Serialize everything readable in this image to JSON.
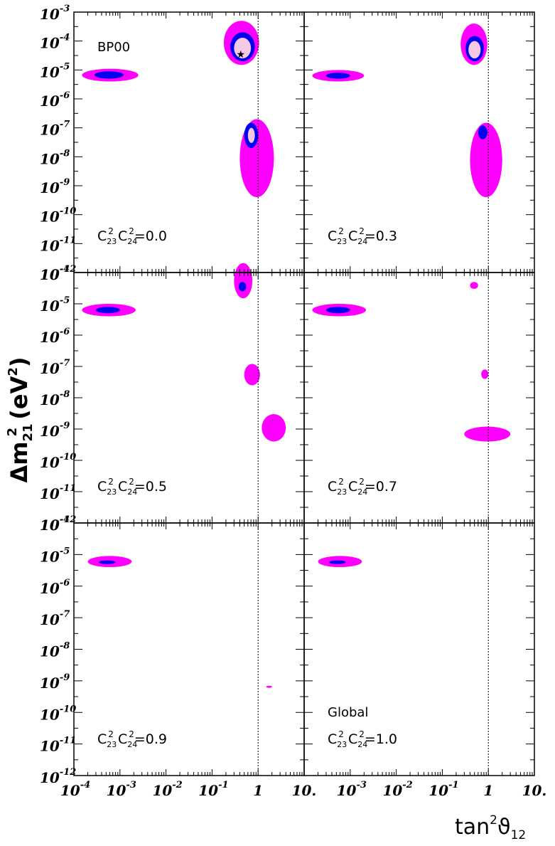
{
  "chart_data": {
    "type": "contour",
    "x_axis": {
      "label_main": "tan",
      "label_sup": "2",
      "label_sym": "ϑ",
      "label_sub": "12",
      "scale": "log",
      "range": [
        0.0001,
        10
      ],
      "ticks": [
        {
          "v": 0.0001,
          "base": "10",
          "exp": "-4"
        },
        {
          "v": 0.001,
          "base": "10",
          "exp": "-3"
        },
        {
          "v": 0.01,
          "base": "10",
          "exp": "-2"
        },
        {
          "v": 0.1,
          "base": "10",
          "exp": "-1"
        },
        {
          "v": 1,
          "base": "1",
          "exp": ""
        },
        {
          "v": 10,
          "base": "10.",
          "exp": ""
        }
      ],
      "reference_line": 1
    },
    "y_axis": {
      "label_main": "Δm",
      "label_sub": "21",
      "label_sup": "2",
      "label_unit": "(eV",
      "label_unit_sup": "2",
      "label_unit_close": ")",
      "scale": "log",
      "range": [
        1e-12,
        0.001
      ],
      "top_panel_ticks": [
        "-3",
        "-4",
        "-5",
        "-6",
        "-7",
        "-8",
        "-9",
        "-10",
        "-11",
        "-12"
      ],
      "other_panel_ticks": [
        "-4",
        "-5",
        "-6",
        "-7",
        "-8",
        "-9",
        "-10",
        "-11",
        "-12"
      ]
    },
    "colors": {
      "outer": "#ff00ff",
      "middle": "#0000ee",
      "inner": "#f5c8e6",
      "frame": "#000000",
      "ref_line": "#000000"
    },
    "panels": [
      {
        "row": 0,
        "col": 0,
        "label_line1": "BP00",
        "label_base": "C",
        "sub1": "23",
        "sub2": "24",
        "value": "=0.0",
        "best_fit_marker": {
          "tan2theta": 0.42,
          "dm2": 3.5e-05
        },
        "regions": [
          {
            "kind": "outer",
            "tan2theta": [
              0.18,
              1.05
            ],
            "dm2": [
              1.5e-05,
              0.0005
            ]
          },
          {
            "kind": "middle",
            "tan2theta": [
              0.25,
              0.85
            ],
            "dm2": [
              2e-05,
              0.0002
            ]
          },
          {
            "kind": "inner",
            "tan2theta": [
              0.3,
              0.7
            ],
            "dm2": [
              2.5e-05,
              0.00013
            ]
          },
          {
            "kind": "outer",
            "tan2theta": [
              0.00015,
              0.0025
            ],
            "dm2": [
              4e-06,
              1.1e-05
            ]
          },
          {
            "kind": "middle",
            "tan2theta": [
              0.00028,
              0.0012
            ],
            "dm2": [
              5e-06,
              9e-06
            ]
          },
          {
            "kind": "outer",
            "tan2theta": [
              0.4,
              2.2
            ],
            "dm2": [
              4e-10,
              2e-07
            ]
          },
          {
            "kind": "middle",
            "tan2theta": [
              0.5,
              1.0
            ],
            "dm2": [
              2e-08,
              1.5e-07
            ]
          },
          {
            "kind": "inner",
            "tan2theta": [
              0.6,
              0.85
            ],
            "dm2": [
              3e-08,
              1e-07
            ]
          }
        ]
      },
      {
        "row": 0,
        "col": 1,
        "label_line1": "",
        "label_base": "C",
        "sub1": "23",
        "sub2": "24",
        "value": "=0.3",
        "regions": [
          {
            "kind": "outer",
            "tan2theta": [
              0.25,
              0.95
            ],
            "dm2": [
              1.5e-05,
              0.0004
            ]
          },
          {
            "kind": "middle",
            "tan2theta": [
              0.32,
              0.8
            ],
            "dm2": [
              2e-05,
              0.00015
            ]
          },
          {
            "kind": "inner",
            "tan2theta": [
              0.37,
              0.68
            ],
            "dm2": [
              2.5e-05,
              0.0001
            ]
          },
          {
            "kind": "outer",
            "tan2theta": [
              0.00015,
              0.002
            ],
            "dm2": [
              4e-06,
              1e-05
            ]
          },
          {
            "kind": "middle",
            "tan2theta": [
              0.0003,
              0.001
            ],
            "dm2": [
              5e-06,
              8e-06
            ]
          },
          {
            "kind": "outer",
            "tan2theta": [
              0.4,
              2.0
            ],
            "dm2": [
              4e-10,
              1.5e-07
            ]
          },
          {
            "kind": "middle",
            "tan2theta": [
              0.6,
              0.95
            ],
            "dm2": [
              4e-08,
              1.2e-07
            ]
          }
        ]
      },
      {
        "row": 1,
        "col": 0,
        "label_line1": "",
        "label_base": "C",
        "sub1": "23",
        "sub2": "24",
        "value": "=0.5",
        "regions": [
          {
            "kind": "outer",
            "tan2theta": [
              0.3,
              0.75
            ],
            "dm2": [
              1.5e-05,
              0.0002
            ]
          },
          {
            "kind": "middle",
            "tan2theta": [
              0.38,
              0.55
            ],
            "dm2": [
              2.5e-05,
              5e-05
            ]
          },
          {
            "kind": "outer",
            "tan2theta": [
              0.00015,
              0.0022
            ],
            "dm2": [
              4e-06,
              1e-05
            ]
          },
          {
            "kind": "middle",
            "tan2theta": [
              0.0003,
              0.001
            ],
            "dm2": [
              5e-06,
              8e-06
            ]
          },
          {
            "kind": "outer",
            "tan2theta": [
              0.5,
              1.1
            ],
            "dm2": [
              2.5e-08,
              1.2e-07
            ]
          },
          {
            "kind": "outer",
            "tan2theta": [
              1.2,
              4.0
            ],
            "dm2": [
              4e-10,
              3e-09
            ]
          }
        ]
      },
      {
        "row": 1,
        "col": 1,
        "label_line1": "",
        "label_base": "C",
        "sub1": "23",
        "sub2": "24",
        "value": "=0.7",
        "regions": [
          {
            "kind": "outer",
            "tan2theta": [
              0.4,
              0.6
            ],
            "dm2": [
              3e-05,
              5e-05
            ]
          },
          {
            "kind": "outer",
            "tan2theta": [
              0.00015,
              0.0022
            ],
            "dm2": [
              4e-06,
              1e-05
            ]
          },
          {
            "kind": "middle",
            "tan2theta": [
              0.0003,
              0.001
            ],
            "dm2": [
              5e-06,
              8e-06
            ]
          },
          {
            "kind": "outer",
            "tan2theta": [
              0.7,
              1.0
            ],
            "dm2": [
              4e-08,
              8e-08
            ]
          },
          {
            "kind": "outer",
            "tan2theta": [
              0.3,
              3.0
            ],
            "dm2": [
              4e-10,
              1.2e-09
            ]
          }
        ]
      },
      {
        "row": 2,
        "col": 0,
        "label_line1": "",
        "label_base": "C",
        "sub1": "23",
        "sub2": "24",
        "value": "=0.9",
        "regions": [
          {
            "kind": "outer",
            "tan2theta": [
              0.0002,
              0.0018
            ],
            "dm2": [
              4e-06,
              9e-06
            ]
          },
          {
            "kind": "middle",
            "tan2theta": [
              0.00035,
              0.0008
            ],
            "dm2": [
              5e-06,
              6.5e-06
            ]
          },
          {
            "kind": "outer",
            "tan2theta": [
              1.5,
              2.0
            ],
            "dm2": [
              6e-10,
              7e-10
            ]
          }
        ]
      },
      {
        "row": 2,
        "col": 1,
        "label_line1": "Global",
        "label_base": "C",
        "sub1": "23",
        "sub2": "24",
        "value": "=1.0",
        "regions": [
          {
            "kind": "outer",
            "tan2theta": [
              0.0002,
              0.0018
            ],
            "dm2": [
              4e-06,
              9e-06
            ]
          },
          {
            "kind": "middle",
            "tan2theta": [
              0.00035,
              0.0008
            ],
            "dm2": [
              5e-06,
              6.5e-06
            ]
          }
        ]
      }
    ]
  }
}
